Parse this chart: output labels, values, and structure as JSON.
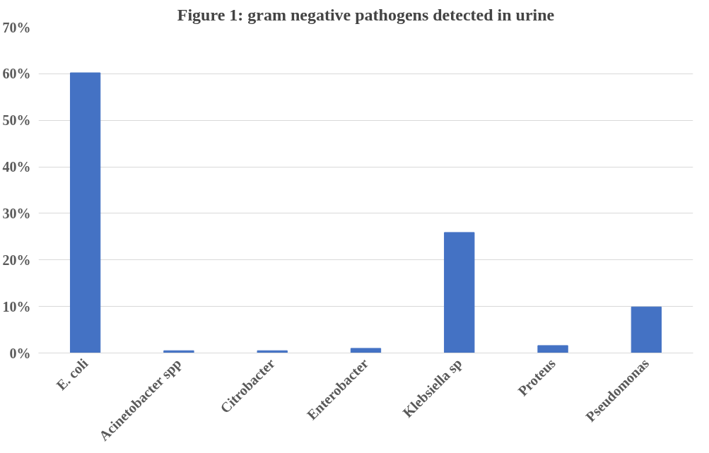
{
  "chart_data": {
    "type": "bar",
    "title": "Figure 1: gram negative pathogens detected in urine",
    "categories": [
      "E. coli",
      "Acinetobacter spp",
      "Citrobacter",
      "Enterobacter",
      "Klebsiella sp",
      "Proteus",
      "Pseudomonas"
    ],
    "values": [
      60.2,
      0.5,
      0.5,
      1.0,
      25.9,
      1.6,
      9.9
    ],
    "color": "#4472c4",
    "ylim": [
      0,
      70
    ],
    "yticks": [
      {
        "value": 0,
        "label": "0%"
      },
      {
        "value": 10,
        "label": "10%"
      },
      {
        "value": 20,
        "label": "20%"
      },
      {
        "value": 30,
        "label": "30%"
      },
      {
        "value": 40,
        "label": "40%"
      },
      {
        "value": 50,
        "label": "50%"
      },
      {
        "value": 60,
        "label": "60%"
      },
      {
        "value": 70,
        "label": "70%"
      }
    ],
    "grid": "y"
  }
}
